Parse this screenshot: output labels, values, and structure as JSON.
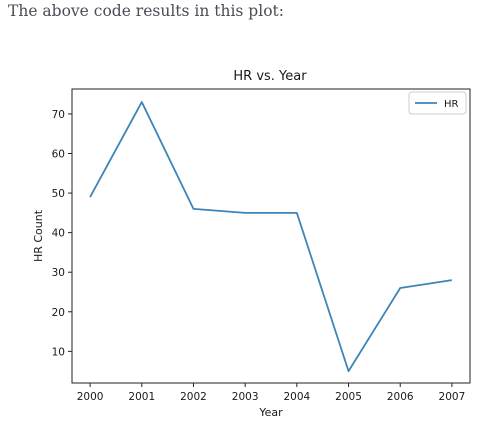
{
  "page": {
    "intro_text": "The above code results in this plot:"
  },
  "chart_data": {
    "type": "line",
    "title": "HR vs. Year",
    "xlabel": "Year",
    "ylabel": "HR Count",
    "x": [
      2000,
      2001,
      2002,
      2003,
      2004,
      2005,
      2006,
      2007
    ],
    "series": [
      {
        "name": "HR",
        "values": [
          49,
          73,
          46,
          45,
          45,
          5,
          26,
          28
        ],
        "color": "#3d84b8"
      }
    ],
    "xticks": [
      "2000",
      "2001",
      "2002",
      "2003",
      "2004",
      "2005",
      "2006",
      "2007"
    ],
    "yticks": [
      "10",
      "20",
      "30",
      "40",
      "50",
      "60",
      "70"
    ],
    "xlim": [
      1999.65,
      2007.35
    ],
    "ylim": [
      2.0,
      76.3
    ],
    "grid": false,
    "legend": "top-right"
  }
}
